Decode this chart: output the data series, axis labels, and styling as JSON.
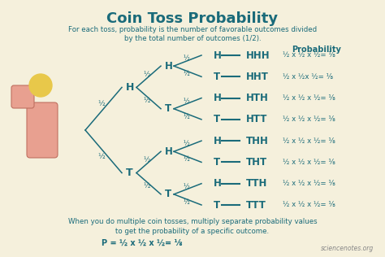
{
  "title": "Coin Toss Probability",
  "subtitle1": "For each toss, probability is the number of favorable outcomes divided",
  "subtitle2": "by the total number of outcomes (1/2).",
  "prob_label": "Probability",
  "outcomes": [
    "HHH",
    "HHT",
    "HTH",
    "HTT",
    "THH",
    "THT",
    "TTH",
    "TTT"
  ],
  "l3_labels": [
    "H",
    "T",
    "H",
    "T",
    "H",
    "T",
    "H",
    "T"
  ],
  "l2_labels": [
    "H",
    "T",
    "H",
    "T"
  ],
  "l1_labels": [
    "H",
    "T"
  ],
  "prob_rows": [
    "½ x ½ x ½= ⅛",
    "½ x ½x ½= ⅛",
    "½ x ½ x ½= ⅛",
    "½ x ½ x ½= ⅛",
    "½ x ½ x ½= ⅛",
    "½ x ½ x ½= ⅛",
    "½ x ½ x ½= ⅛",
    "½ x ½ x ½= ⅛"
  ],
  "bottom_text1": "When you do multiple coin tosses, multiply separate probability values",
  "bottom_text2": "to get the probability of a specific outcome.",
  "bottom_formula": "P = ½ x ½ x ½= ⅛",
  "watermark": "sciencenotes.org",
  "bg_color": "#f5f0dc",
  "title_color": "#1a6b7a",
  "tree_color": "#1a6b7a",
  "text_color": "#1a6b7a",
  "half": "½",
  "eighth": "⅛"
}
